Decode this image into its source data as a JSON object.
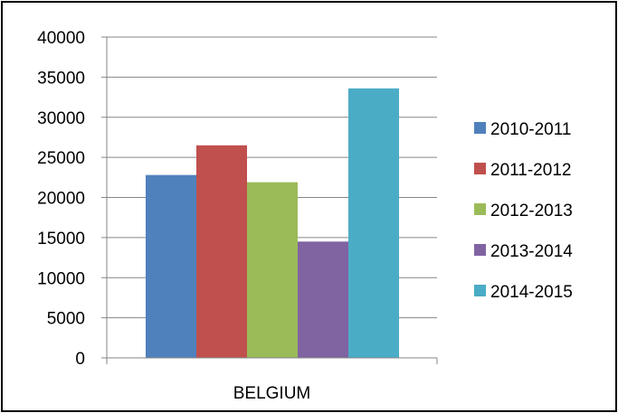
{
  "chart_data": {
    "type": "bar",
    "categories": [
      "BELGIUM"
    ],
    "series": [
      {
        "name": "2010-2011",
        "values": [
          22800
        ],
        "color": "#4F81BD"
      },
      {
        "name": "2011-2012",
        "values": [
          26500
        ],
        "color": "#C0504D"
      },
      {
        "name": "2012-2013",
        "values": [
          21900
        ],
        "color": "#9BBB59"
      },
      {
        "name": "2013-2014",
        "values": [
          14500
        ],
        "color": "#8064A2"
      },
      {
        "name": "2014-2015",
        "values": [
          33600
        ],
        "color": "#4BACC6"
      }
    ],
    "title": "",
    "xlabel": "",
    "ylabel": "",
    "ylim": [
      0,
      40000
    ],
    "yticks": [
      "0",
      "5000",
      "10000",
      "15000",
      "20000",
      "25000",
      "30000",
      "35000",
      "40000"
    ],
    "grid": true,
    "legend_position": "right"
  }
}
